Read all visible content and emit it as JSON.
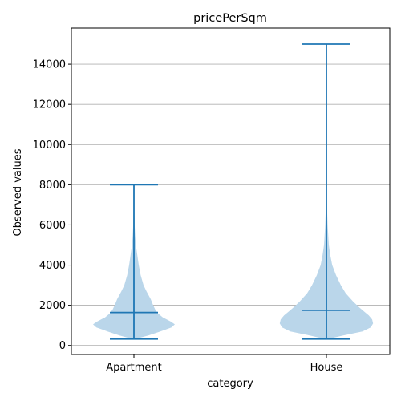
{
  "chart_data": {
    "type": "violin",
    "title": "pricePerSqm",
    "xlabel": "category",
    "ylabel": "Observed values",
    "categories": [
      "Apartment",
      "House"
    ],
    "ylim": [
      -450,
      15800
    ],
    "yticks": [
      0,
      2000,
      4000,
      6000,
      8000,
      10000,
      12000,
      14000
    ],
    "ytick_labels": [
      "0",
      "2000",
      "4000",
      "6000",
      "8000",
      "10000",
      "12000",
      "14000"
    ],
    "grid": "y",
    "colors": {
      "body": "#bad6ea",
      "lines": "#1f77b4"
    },
    "violins": [
      {
        "category": "Apartment",
        "min": 320,
        "median": 1640,
        "max": 8000,
        "density": [
          [
            320,
            0.02
          ],
          [
            500,
            0.3
          ],
          [
            700,
            0.55
          ],
          [
            900,
            0.78
          ],
          [
            1050,
            0.85
          ],
          [
            1200,
            0.76
          ],
          [
            1400,
            0.6
          ],
          [
            1600,
            0.5
          ],
          [
            1800,
            0.44
          ],
          [
            2000,
            0.4
          ],
          [
            2300,
            0.35
          ],
          [
            2700,
            0.26
          ],
          [
            3000,
            0.2
          ],
          [
            3500,
            0.14
          ],
          [
            4000,
            0.1
          ],
          [
            4500,
            0.07
          ],
          [
            5000,
            0.04
          ],
          [
            5500,
            0.025
          ],
          [
            6000,
            0.015
          ],
          [
            7000,
            0.006
          ],
          [
            8000,
            0.0
          ]
        ]
      },
      {
        "category": "House",
        "min": 320,
        "median": 1750,
        "max": 15000,
        "density": [
          [
            320,
            0.02
          ],
          [
            500,
            0.35
          ],
          [
            700,
            0.75
          ],
          [
            900,
            0.92
          ],
          [
            1100,
            0.97
          ],
          [
            1300,
            0.95
          ],
          [
            1500,
            0.88
          ],
          [
            1700,
            0.78
          ],
          [
            1900,
            0.68
          ],
          [
            2200,
            0.55
          ],
          [
            2600,
            0.4
          ],
          [
            3000,
            0.3
          ],
          [
            3500,
            0.2
          ],
          [
            4000,
            0.12
          ],
          [
            4500,
            0.08
          ],
          [
            5000,
            0.05
          ],
          [
            6000,
            0.025
          ],
          [
            7000,
            0.01
          ],
          [
            8000,
            0.005
          ],
          [
            9000,
            0.003
          ],
          [
            11000,
            0.001
          ],
          [
            13000,
            0.0005
          ],
          [
            15000,
            0.0
          ]
        ]
      }
    ]
  }
}
